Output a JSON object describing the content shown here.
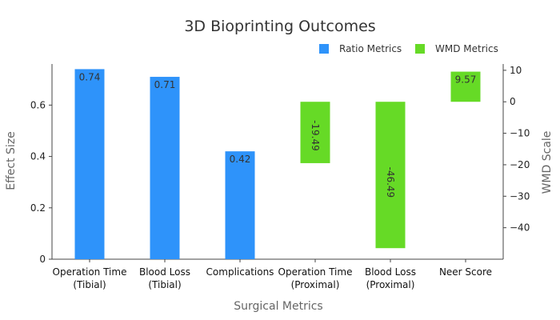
{
  "chart_data": {
    "type": "bar",
    "title": "3D Bioprinting Outcomes",
    "xlabel": "Surgical Metrics",
    "ylabel": "Effect Size",
    "y2label": "WMD Scale",
    "categories": [
      [
        "Operation Time",
        "(Tibial)"
      ],
      [
        "Blood Loss",
        "(Tibial)"
      ],
      [
        "Complications"
      ],
      [
        "Operation Time",
        "(Proximal)"
      ],
      [
        "Blood Loss",
        "(Proximal)"
      ],
      [
        "Neer Score"
      ]
    ],
    "ylim": [
      0,
      0.76
    ],
    "yticks": [
      "0",
      "0.2",
      "0.4",
      "0.6"
    ],
    "y2lim": [
      -50,
      12
    ],
    "y2ticks": [
      "10",
      "0",
      "−10",
      "−20",
      "−30",
      "−40"
    ],
    "series": [
      {
        "name": "Ratio Metrics",
        "axis": "left",
        "color": "#2e93fa",
        "values": [
          0.74,
          0.71,
          0.42,
          null,
          null,
          null
        ],
        "labels": [
          "0.74",
          "0.71",
          "0.42",
          "",
          "",
          ""
        ]
      },
      {
        "name": "WMD Metrics",
        "axis": "right",
        "color": "#66da26",
        "values": [
          null,
          null,
          null,
          -19.49,
          -46.49,
          9.57
        ],
        "labels": [
          "",
          "",
          "",
          "-19.49",
          "-46.49",
          "9.57"
        ]
      }
    ],
    "legend": "top-right",
    "grid": false
  }
}
